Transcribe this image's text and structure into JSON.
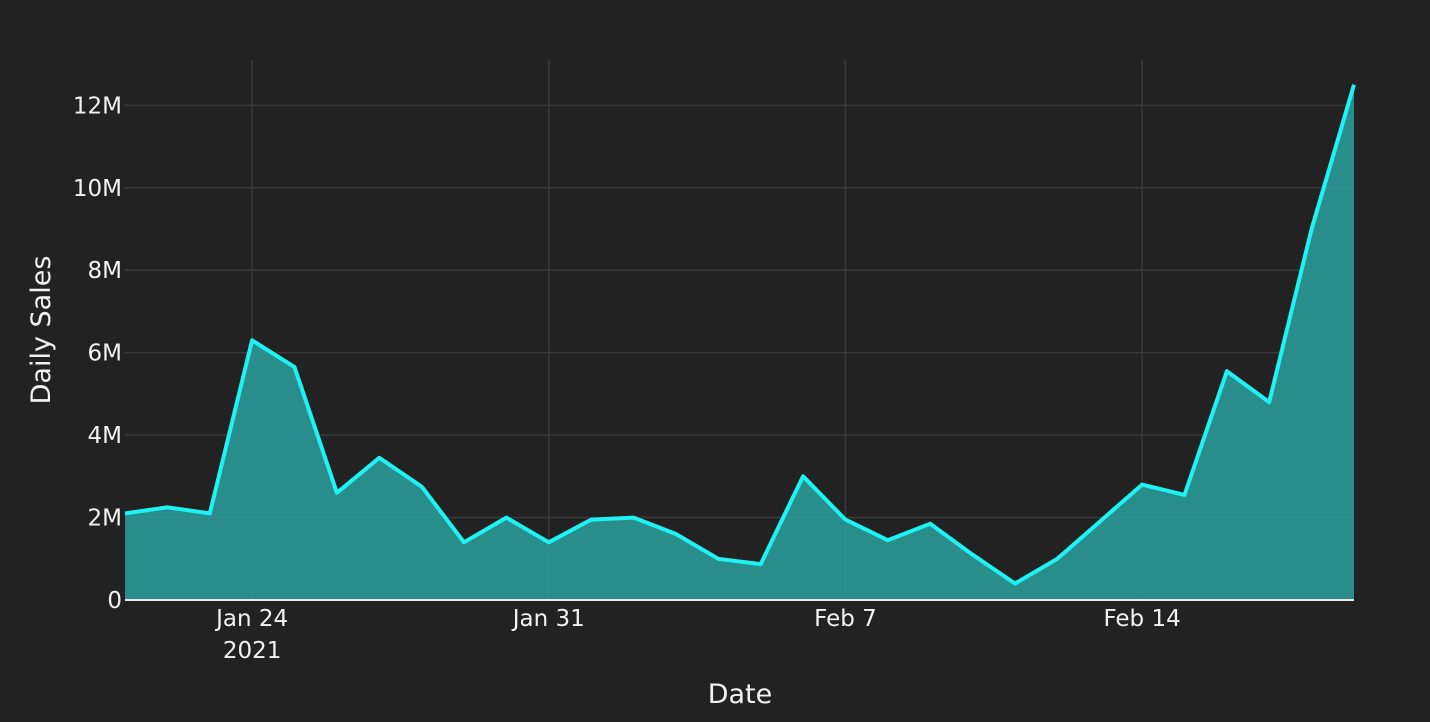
{
  "chart_data": {
    "type": "area",
    "xlabel": "Date",
    "ylabel": "Daily Sales",
    "x_start": "2021-01-21",
    "x_end": "2021-02-19",
    "x": [
      "2021-01-21",
      "2021-01-22",
      "2021-01-23",
      "2021-01-24",
      "2021-01-25",
      "2021-01-26",
      "2021-01-27",
      "2021-01-28",
      "2021-01-29",
      "2021-01-30",
      "2021-01-31",
      "2021-02-01",
      "2021-02-02",
      "2021-02-03",
      "2021-02-04",
      "2021-02-05",
      "2021-02-06",
      "2021-02-07",
      "2021-02-08",
      "2021-02-09",
      "2021-02-10",
      "2021-02-11",
      "2021-02-12",
      "2021-02-13",
      "2021-02-14",
      "2021-02-15",
      "2021-02-16",
      "2021-02-17",
      "2021-02-18",
      "2021-02-19"
    ],
    "values": [
      2100000,
      2250000,
      2100000,
      6300000,
      5650000,
      2600000,
      3450000,
      2750000,
      1400000,
      2000000,
      1400000,
      1950000,
      2000000,
      1600000,
      1000000,
      870000,
      3000000,
      1950000,
      1450000,
      1850000,
      1100000,
      400000,
      1000000,
      1900000,
      2800000,
      2550000,
      5550000,
      4800000,
      9000000,
      12500000
    ],
    "ylim": [
      0,
      13100000
    ],
    "y_ticks": [
      {
        "value": 0,
        "label": "0"
      },
      {
        "value": 2000000,
        "label": "2M"
      },
      {
        "value": 4000000,
        "label": "4M"
      },
      {
        "value": 6000000,
        "label": "6M"
      },
      {
        "value": 8000000,
        "label": "8M"
      },
      {
        "value": 10000000,
        "label": "10M"
      },
      {
        "value": 12000000,
        "label": "12M"
      }
    ],
    "x_ticks": [
      {
        "value": "2021-01-24",
        "label": "Jan 24",
        "sublabel": "2021"
      },
      {
        "value": "2021-01-31",
        "label": "Jan 31"
      },
      {
        "value": "2021-02-07",
        "label": "Feb 7"
      },
      {
        "value": "2021-02-14",
        "label": "Feb 14"
      }
    ],
    "grid": true,
    "legend": false,
    "colors": {
      "background": "#222222",
      "grid": "#3a3a3a",
      "line": "#1ef2f2",
      "fill": "#2a9492",
      "text": "#f2f2f2",
      "baseline": "#e8e8e8"
    }
  }
}
